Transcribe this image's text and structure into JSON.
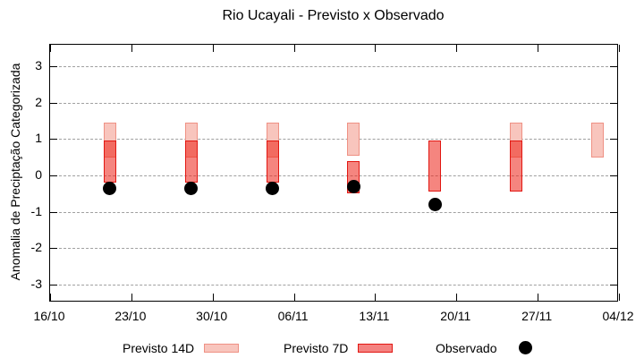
{
  "title": "Rio Ucayali - Previsto x Observado",
  "ylabel": "Anomalia de Preciptação Categorizada",
  "legend": {
    "previsto_14d": "Previsto 14D",
    "previsto_7d": "Previsto 7D",
    "observado": "Observado"
  },
  "colors": {
    "previsto_14d_fill": "#f8c5bd",
    "previsto_14d_border": "#ef9184",
    "previsto_7d_fill": "#f48280",
    "previsto_7d_border": "#e21712",
    "overlap_fill": "#f1665c",
    "observado": "#000000",
    "grid": "#a0a0a0",
    "background": "#ffffff"
  },
  "chart_data": {
    "type": "bar",
    "subtype": "range-bars-with-scatter",
    "title": "Rio Ucayali - Previsto x Observado",
    "xlabel": "",
    "ylabel": "Anomalia de Preciptação Categorizada",
    "ylim": [
      -3.5,
      3.5
    ],
    "grid": true,
    "legend_position": "bottom",
    "x_tick_labels": [
      "16/10",
      "23/10",
      "30/10",
      "06/11",
      "13/11",
      "20/11",
      "27/11",
      "04/12"
    ],
    "y_tick_labels": [
      "3",
      "2",
      "1",
      "0",
      "-1",
      "-2",
      "-3"
    ],
    "y_tick_values": [
      3,
      2,
      1,
      0,
      -1,
      -2,
      -3
    ],
    "series_names": [
      "Previsto 14D",
      "Previsto 7D",
      "Observado"
    ],
    "groups": [
      {
        "date": "21/10",
        "previsto_14d": {
          "low": 0.5,
          "high": 1.45
        },
        "previsto_7d": {
          "low": -0.2,
          "high": 0.95
        },
        "observado": -0.35
      },
      {
        "date": "28/10",
        "previsto_14d": {
          "low": 0.5,
          "high": 1.45
        },
        "previsto_7d": {
          "low": -0.2,
          "high": 0.95
        },
        "observado": -0.35
      },
      {
        "date": "04/11",
        "previsto_14d": {
          "low": 0.5,
          "high": 1.45
        },
        "previsto_7d": {
          "low": -0.2,
          "high": 0.95
        },
        "observado": -0.35
      },
      {
        "date": "11/11",
        "previsto_14d": {
          "low": 0.55,
          "high": 1.45
        },
        "previsto_7d": {
          "low": -0.5,
          "high": 0.4
        },
        "observado": -0.3
      },
      {
        "date": "18/11",
        "previsto_14d": null,
        "previsto_7d": {
          "low": -0.45,
          "high": 0.95
        },
        "observado": -0.8
      },
      {
        "date": "25/11",
        "previsto_14d": {
          "low": 0.5,
          "high": 1.45
        },
        "previsto_7d": {
          "low": -0.45,
          "high": 0.95
        },
        "observado": null
      },
      {
        "date": "02/12",
        "previsto_14d": {
          "low": 0.5,
          "high": 1.45
        },
        "previsto_7d": null,
        "observado": null
      }
    ]
  }
}
